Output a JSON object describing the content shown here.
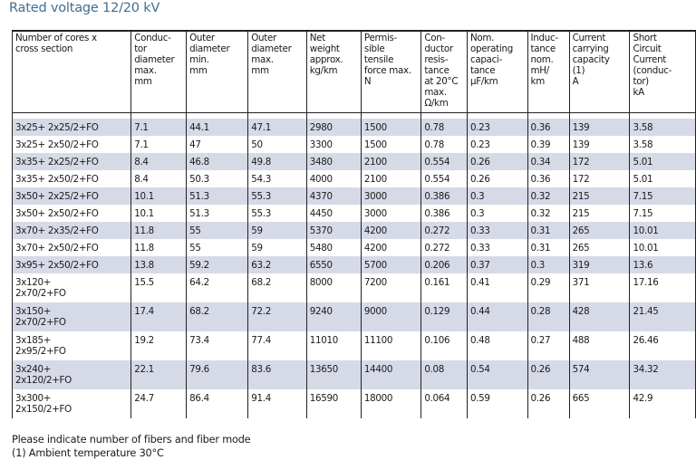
{
  "title": "Rated voltage 12/20 kV",
  "columns": [
    "Number of cores x cross section",
    "Conduc-tor diameter max. mm",
    "Outer diameter min. mm",
    "Outer diameter max. mm",
    "Net weight approx. kg/km",
    "Permis-sible tensile force max. N",
    "Con-ductor resis-tance at 20°C max. Ω/km",
    "Nom. operating capaci-tance µF/km",
    "Induc-tance nom. mH/ km",
    "Current carrying capacity (1) A",
    "Short Circuit Current (conduc-tor) kA"
  ],
  "column_lines": [
    [
      "Number of cores x",
      "cross section"
    ],
    [
      "Conduc-",
      "tor",
      "diameter",
      "max.",
      "mm"
    ],
    [
      "Outer",
      "diameter",
      "min.",
      "mm"
    ],
    [
      "Outer",
      "diameter",
      "max.",
      "mm"
    ],
    [
      "Net",
      "weight",
      "approx.",
      "kg/km"
    ],
    [
      "Permis-",
      "sible",
      "tensile",
      "force max.",
      "N"
    ],
    [
      "Con-",
      "ductor",
      "resis-",
      "tance",
      "at 20°C",
      "max.",
      "Ω/km"
    ],
    [
      "Nom.",
      "operating",
      "capaci-",
      "tance",
      "µF/km"
    ],
    [
      "Induc-",
      "tance",
      "nom.",
      "mH/",
      "km"
    ],
    [
      "Current",
      "carrying",
      "capacity",
      "(1)",
      "A"
    ],
    [
      "Short",
      "Circuit",
      "Current",
      "(conduc-",
      "tor)",
      "kA"
    ]
  ],
  "rows": [
    [
      "3x25+ 2x25/2+FO",
      "7.1",
      "44.1",
      "47.1",
      "2980",
      "1500",
      "0.78",
      "0.23",
      "0.36",
      "139",
      "3.58"
    ],
    [
      "3x25+ 2x50/2+FO",
      "7.1",
      "47",
      "50",
      "3300",
      "1500",
      "0.78",
      "0.23",
      "0.39",
      "139",
      "3.58"
    ],
    [
      "3x35+ 2x25/2+FO",
      "8.4",
      "46.8",
      "49.8",
      "3480",
      "2100",
      "0.554",
      "0.26",
      "0.34",
      "172",
      "5.01"
    ],
    [
      "3x35+ 2x50/2+FO",
      "8.4",
      "50.3",
      "54.3",
      "4000",
      "2100",
      "0.554",
      "0.26",
      "0.36",
      "172",
      "5.01"
    ],
    [
      "3x50+ 2x25/2+FO",
      "10.1",
      "51.3",
      "55.3",
      "4370",
      "3000",
      "0.386",
      "0.3",
      "0.32",
      "215",
      "7.15"
    ],
    [
      "3x50+ 2x50/2+FO",
      "10.1",
      "51.3",
      "55.3",
      "4450",
      "3000",
      "0.386",
      "0.3",
      "0.32",
      "215",
      "7.15"
    ],
    [
      "3x70+ 2x35/2+FO",
      "11.8",
      "55",
      "59",
      "5370",
      "4200",
      "0.272",
      "0.33",
      "0.31",
      "265",
      "10.01"
    ],
    [
      "3x70+ 2x50/2+FO",
      "11.8",
      "55",
      "59",
      "5480",
      "4200",
      "0.272",
      "0.33",
      "0.31",
      "265",
      "10.01"
    ],
    [
      "3x95+ 2x50/2+FO",
      "13.8",
      "59.2",
      "63.2",
      "6550",
      "5700",
      "0.206",
      "0.37",
      "0.3",
      "319",
      "13.6"
    ],
    [
      "3x120+ 2x70/2+FO",
      "15.5",
      "64.2",
      "68.2",
      "8000",
      "7200",
      "0.161",
      "0.41",
      "0.29",
      "371",
      "17.16"
    ],
    [
      "3x150+ 2x70/2+FO",
      "17.4",
      "68.2",
      "72.2",
      "9240",
      "9000",
      "0.129",
      "0.44",
      "0.28",
      "428",
      "21.45"
    ],
    [
      "3x185+ 2x95/2+FO",
      "19.2",
      "73.4",
      "77.4",
      "11010",
      "11100",
      "0.106",
      "0.48",
      "0.27",
      "488",
      "26.46"
    ],
    [
      "3x240+ 2x120/2+FO",
      "22.1",
      "79.6",
      "83.6",
      "13650",
      "14400",
      "0.08",
      "0.54",
      "0.26",
      "574",
      "34.32"
    ],
    [
      "3x300+ 2x150/2+FO",
      "24.7",
      "86.4",
      "91.4",
      "16590",
      "18000",
      "0.064",
      "0.59",
      "0.26",
      "665",
      "42.9"
    ]
  ],
  "notes": [
    "Please indicate number of fibers and fiber mode",
    "(1) Ambient temperature 30°C"
  ],
  "colors": {
    "title": "#3f6e92",
    "row_shade": "#d6dae7"
  }
}
